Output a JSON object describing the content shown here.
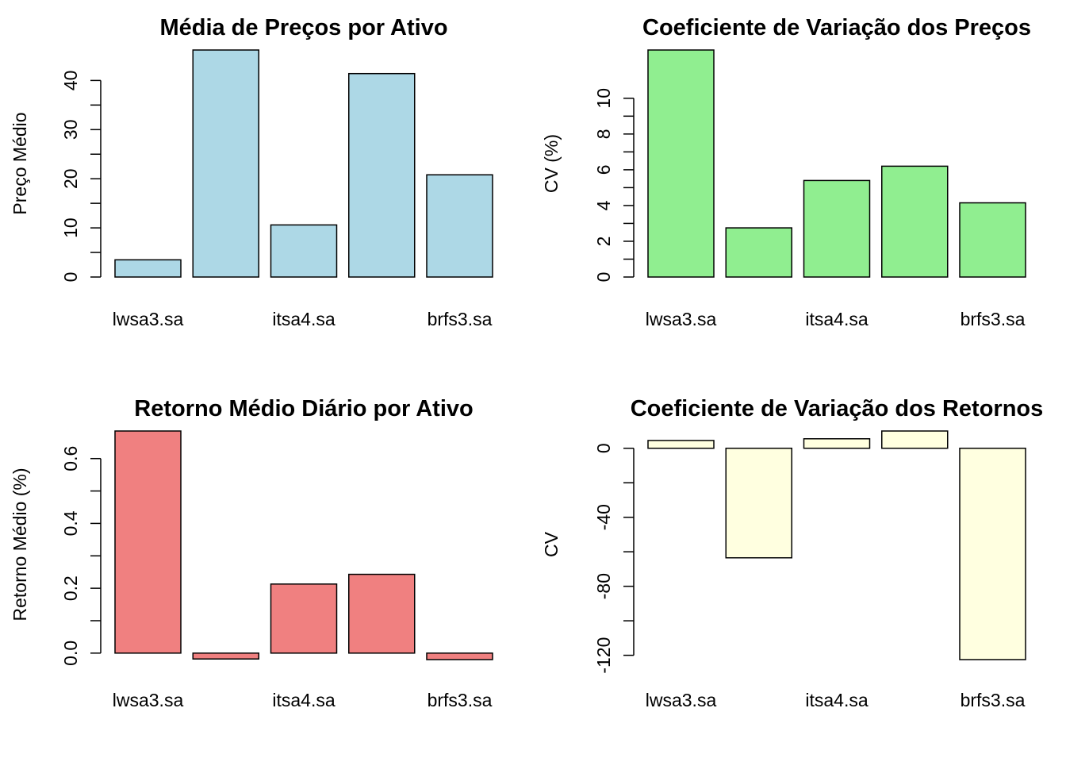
{
  "chart_data": [
    {
      "type": "bar",
      "title": "Média de Preços por Ativo",
      "ylabel": "Preço Médio",
      "categories": [
        "lwsa3.sa",
        "",
        "itsa4.sa",
        "",
        "brfs3.sa"
      ],
      "values": [
        3.5,
        46.2,
        10.6,
        41.4,
        20.8
      ],
      "ylim": [
        0,
        46.2
      ],
      "yticks": [
        0,
        10,
        20,
        30,
        40
      ],
      "ytick_labels": [
        "0",
        "10",
        "20",
        "30",
        "40"
      ],
      "color": "#add8e6"
    },
    {
      "type": "bar",
      "title": "Coeficiente de Variação dos Preços",
      "ylabel": "CV (%)",
      "categories": [
        "lwsa3.sa",
        "",
        "itsa4.sa",
        "",
        "brfs3.sa"
      ],
      "values": [
        12.7,
        2.75,
        5.4,
        6.2,
        4.15
      ],
      "ylim": [
        0,
        12.7
      ],
      "yticks": [
        0,
        2,
        4,
        6,
        8,
        10
      ],
      "ytick_labels": [
        "0",
        "2",
        "4",
        "6",
        "8",
        "10"
      ],
      "color": "#90ee90"
    },
    {
      "type": "bar",
      "title": "Retorno Médio Diário por Ativo",
      "ylabel": "Retorno Médio (%)",
      "categories": [
        "lwsa3.sa",
        "",
        "itsa4.sa",
        "",
        "brfs3.sa"
      ],
      "values": [
        0.685,
        -0.018,
        0.213,
        0.243,
        -0.02
      ],
      "ylim": [
        -0.02,
        0.685
      ],
      "yticks": [
        0.0,
        0.2,
        0.4,
        0.6
      ],
      "ytick_labels": [
        "0.0",
        "0.2",
        "0.4",
        "0.6"
      ],
      "color": "#f08080"
    },
    {
      "type": "bar",
      "title": "Coeficiente de Variação dos Retornos",
      "ylabel": "CV",
      "categories": [
        "lwsa3.sa",
        "",
        "itsa4.sa",
        "",
        "brfs3.sa"
      ],
      "values": [
        4.5,
        -63.5,
        5.5,
        10.0,
        -122.5
      ],
      "ylim": [
        -122.5,
        10.0
      ],
      "yticks": [
        0,
        -40,
        -80,
        -120
      ],
      "ytick_labels": [
        "0",
        "-40",
        "-80",
        "-120"
      ],
      "color": "#ffffe0"
    }
  ]
}
